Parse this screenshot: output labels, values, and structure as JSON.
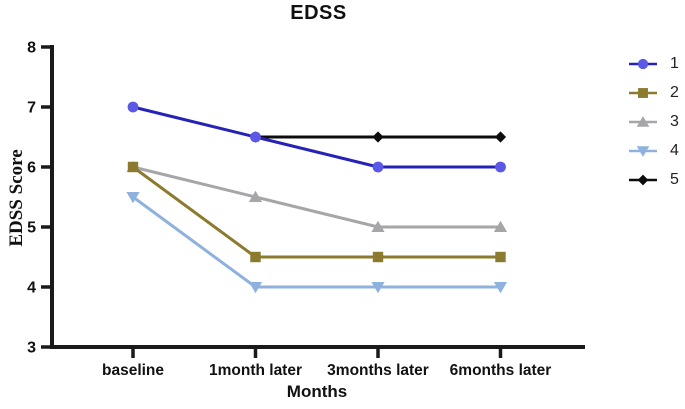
{
  "chart_data": {
    "type": "line",
    "title": "EDSS",
    "xlabel": "Months",
    "ylabel": "EDSS Score",
    "categories": [
      "baseline",
      "1month later",
      "3months later",
      "6months later"
    ],
    "ylim": [
      3,
      8
    ],
    "yticks": [
      3,
      4,
      5,
      6,
      7,
      8
    ],
    "grid": false,
    "legend_position": "right",
    "axis_color": "#1a1a1a",
    "series": [
      {
        "name": "1",
        "marker": "circle",
        "marker_color": "#5b58e6",
        "line_color": "#2722b6",
        "values": [
          7.0,
          6.5,
          6.0,
          6.0
        ]
      },
      {
        "name": "2",
        "marker": "square",
        "marker_color": "#8c7b2e",
        "line_color": "#8c7b2e",
        "values": [
          6.0,
          4.5,
          4.5,
          4.5
        ]
      },
      {
        "name": "3",
        "marker": "triangle-up",
        "marker_color": "#a6a6a9",
        "line_color": "#a6a6a9",
        "values": [
          6.0,
          5.5,
          5.0,
          5.0
        ]
      },
      {
        "name": "4",
        "marker": "triangle-down",
        "marker_color": "#8fb1de",
        "line_color": "#8fb1de",
        "values": [
          5.5,
          4.0,
          4.0,
          4.0
        ]
      },
      {
        "name": "5",
        "marker": "diamond",
        "marker_color": "#0d0d0d",
        "line_color": "#0d0d0d",
        "values": [
          null,
          6.5,
          6.5,
          6.5
        ]
      }
    ]
  }
}
